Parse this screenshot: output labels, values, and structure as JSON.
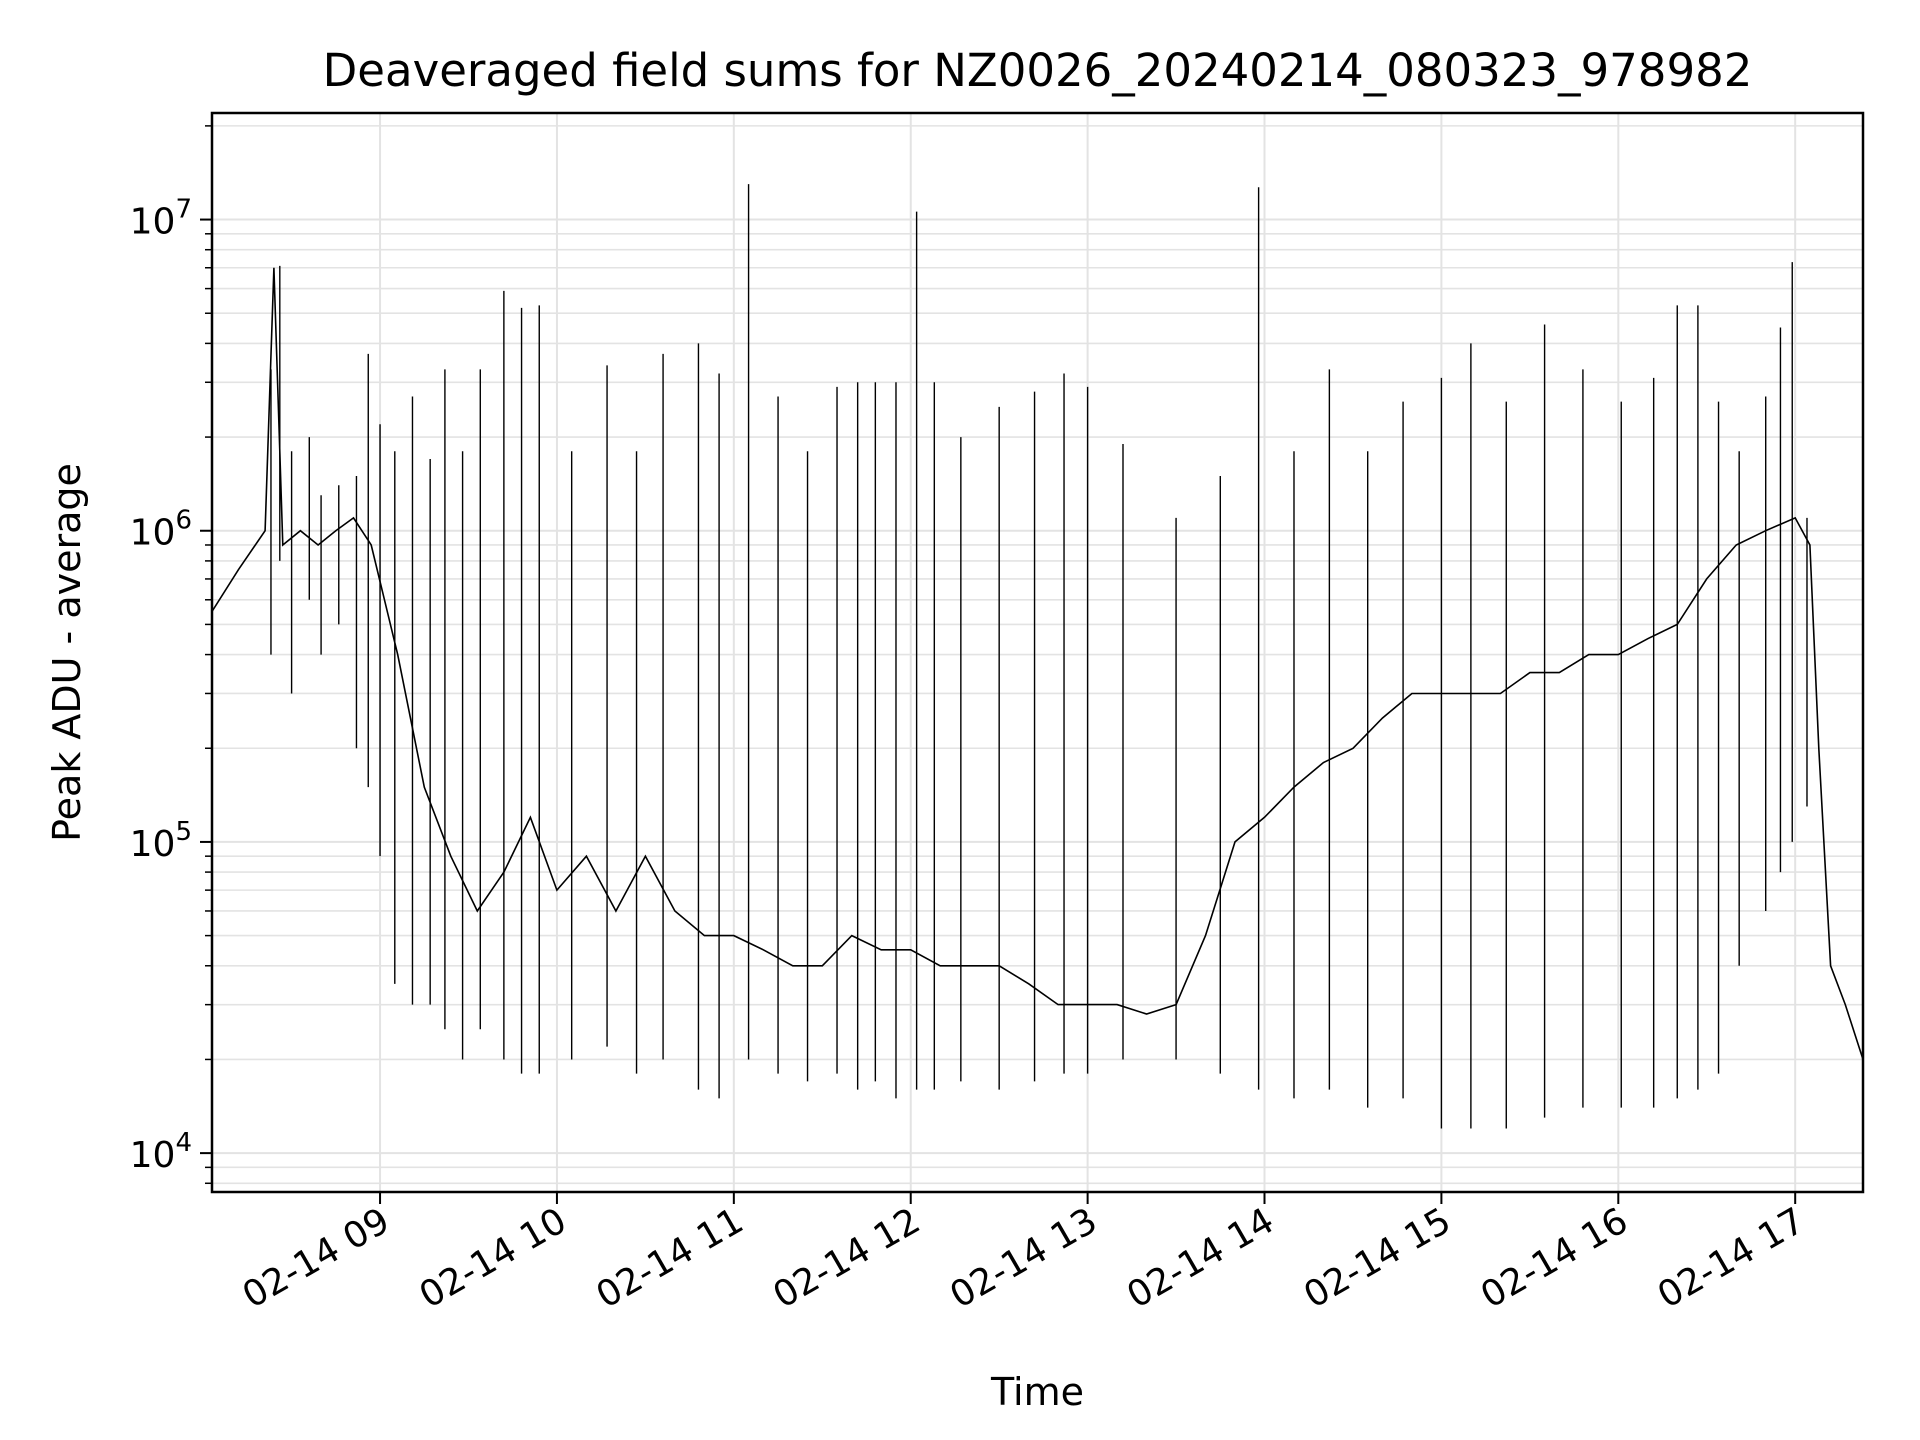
{
  "chart_data": {
    "type": "line",
    "title": "Deaveraged field sums for NZ0026_20240214_080323_978982",
    "xlabel": "Time",
    "ylabel": "Peak ADU - average",
    "yscale": "log",
    "ylim": [
      7500,
      22000000
    ],
    "xlim": [
      "2024-02-14 08:03",
      "2024-02-14 17:23"
    ],
    "grid": "on",
    "x_tick_labels": [
      "02-14 09",
      "02-14 10",
      "02-14 11",
      "02-14 12",
      "02-14 13",
      "02-14 14",
      "02-14 15",
      "02-14 16",
      "02-14 17"
    ],
    "y_tick_labels": [
      {
        "base": "10",
        "exp": "4",
        "value": 10000
      },
      {
        "base": "10",
        "exp": "5",
        "value": 100000
      },
      {
        "base": "10",
        "exp": "6",
        "value": 1000000
      },
      {
        "base": "10",
        "exp": "7",
        "value": 10000000
      }
    ],
    "series": [
      {
        "color": "#000000",
        "x": [
          "2024-02-14 08:03",
          "2024-02-14 08:12",
          "2024-02-14 08:21",
          "2024-02-14 08:24",
          "2024-02-14 08:27",
          "2024-02-14 08:33",
          "2024-02-14 08:39",
          "2024-02-14 08:45",
          "2024-02-14 08:51",
          "2024-02-14 08:57",
          "2024-02-14 09:06",
          "2024-02-14 09:15",
          "2024-02-14 09:24",
          "2024-02-14 09:33",
          "2024-02-14 09:42",
          "2024-02-14 09:51",
          "2024-02-14 10:00",
          "2024-02-14 10:10",
          "2024-02-14 10:20",
          "2024-02-14 10:30",
          "2024-02-14 10:40",
          "2024-02-14 10:50",
          "2024-02-14 11:00",
          "2024-02-14 11:10",
          "2024-02-14 11:20",
          "2024-02-14 11:30",
          "2024-02-14 11:40",
          "2024-02-14 11:50",
          "2024-02-14 12:00",
          "2024-02-14 12:10",
          "2024-02-14 12:20",
          "2024-02-14 12:30",
          "2024-02-14 12:40",
          "2024-02-14 12:50",
          "2024-02-14 13:00",
          "2024-02-14 13:10",
          "2024-02-14 13:20",
          "2024-02-14 13:30",
          "2024-02-14 13:40",
          "2024-02-14 13:50",
          "2024-02-14 14:00",
          "2024-02-14 14:10",
          "2024-02-14 14:20",
          "2024-02-14 14:30",
          "2024-02-14 14:40",
          "2024-02-14 14:50",
          "2024-02-14 15:00",
          "2024-02-14 15:10",
          "2024-02-14 15:20",
          "2024-02-14 15:30",
          "2024-02-14 15:40",
          "2024-02-14 15:50",
          "2024-02-14 16:00",
          "2024-02-14 16:10",
          "2024-02-14 16:20",
          "2024-02-14 16:30",
          "2024-02-14 16:40",
          "2024-02-14 16:50",
          "2024-02-14 17:00",
          "2024-02-14 17:05",
          "2024-02-14 17:08",
          "2024-02-14 17:12",
          "2024-02-14 17:17",
          "2024-02-14 17:23"
        ],
        "y": [
          550000,
          750000,
          1000000,
          7000000,
          900000,
          1000000,
          900000,
          1000000,
          1100000,
          900000,
          400000,
          150000,
          90000,
          60000,
          80000,
          120000,
          70000,
          90000,
          60000,
          90000,
          60000,
          50000,
          50000,
          45000,
          40000,
          40000,
          50000,
          45000,
          45000,
          40000,
          40000,
          40000,
          35000,
          30000,
          30000,
          30000,
          28000,
          30000,
          50000,
          100000,
          120000,
          150000,
          180000,
          200000,
          250000,
          300000,
          300000,
          300000,
          300000,
          350000,
          350000,
          400000,
          400000,
          450000,
          500000,
          700000,
          900000,
          1000000,
          1100000,
          900000,
          200000,
          40000,
          30000,
          20000
        ]
      }
    ],
    "spike_range_series": [
      {
        "name": "",
        "x": [
          "2024-02-14 08:23",
          "2024-02-14 08:26",
          "2024-02-14 08:30",
          "2024-02-14 08:36",
          "2024-02-14 08:40",
          "2024-02-14 08:46",
          "2024-02-14 08:52",
          "2024-02-14 08:56",
          "2024-02-14 09:00",
          "2024-02-14 09:05",
          "2024-02-14 09:11",
          "2024-02-14 09:17",
          "2024-02-14 09:22",
          "2024-02-14 09:28",
          "2024-02-14 09:34",
          "2024-02-14 09:42",
          "2024-02-14 09:48",
          "2024-02-14 09:54",
          "2024-02-14 10:05",
          "2024-02-14 10:17",
          "2024-02-14 10:27",
          "2024-02-14 10:36",
          "2024-02-14 10:48",
          "2024-02-14 10:55",
          "2024-02-14 11:05",
          "2024-02-14 11:15",
          "2024-02-14 11:25",
          "2024-02-14 11:35",
          "2024-02-14 11:42",
          "2024-02-14 11:48",
          "2024-02-14 11:55",
          "2024-02-14 12:02",
          "2024-02-14 12:08",
          "2024-02-14 12:17",
          "2024-02-14 12:30",
          "2024-02-14 12:42",
          "2024-02-14 12:52",
          "2024-02-14 13:00",
          "2024-02-14 13:12",
          "2024-02-14 13:30",
          "2024-02-14 13:45",
          "2024-02-14 13:58",
          "2024-02-14 14:10",
          "2024-02-14 14:22",
          "2024-02-14 14:35",
          "2024-02-14 14:47",
          "2024-02-14 15:00",
          "2024-02-14 15:10",
          "2024-02-14 15:22",
          "2024-02-14 15:35",
          "2024-02-14 15:48",
          "2024-02-14 16:01",
          "2024-02-14 16:12",
          "2024-02-14 16:20",
          "2024-02-14 16:27",
          "2024-02-14 16:34",
          "2024-02-14 16:41",
          "2024-02-14 16:50",
          "2024-02-14 16:55",
          "2024-02-14 16:59",
          "2024-02-14 17:04"
        ],
        "low": [
          400000,
          800000,
          300000,
          600000,
          400000,
          500000,
          200000,
          150000,
          90000,
          35000,
          30000,
          30000,
          25000,
          20000,
          25000,
          20000,
          18000,
          18000,
          20000,
          22000,
          18000,
          20000,
          16000,
          15000,
          20000,
          18000,
          17000,
          18000,
          16000,
          17000,
          15000,
          16000,
          16000,
          17000,
          16000,
          17000,
          18000,
          18000,
          20000,
          20000,
          18000,
          16000,
          15000,
          16000,
          14000,
          15000,
          12000,
          12000,
          12000,
          13000,
          14000,
          14000,
          14000,
          15000,
          16000,
          18000,
          40000,
          60000,
          80000,
          100000,
          130000
        ],
        "high": [
          3300000,
          7100000,
          1800000,
          2000000,
          1300000,
          1400000,
          1500000,
          3700000,
          2200000,
          1800000,
          2700000,
          1700000,
          3300000,
          1800000,
          3300000,
          5900000,
          5200000,
          5300000,
          1800000,
          3400000,
          1800000,
          3700000,
          4000000,
          3200000,
          13000000,
          2700000,
          1800000,
          2900000,
          3000000,
          3000000,
          3000000,
          10600000,
          3000000,
          2000000,
          2500000,
          2800000,
          3200000,
          2900000,
          1900000,
          1100000,
          1500000,
          12700000,
          1800000,
          3300000,
          1800000,
          2600000,
          3100000,
          4000000,
          2600000,
          4600000,
          3300000,
          2600000,
          3100000,
          5300000,
          5300000,
          2600000,
          1800000,
          2700000,
          4500000,
          7300000,
          1100000
        ]
      }
    ]
  }
}
